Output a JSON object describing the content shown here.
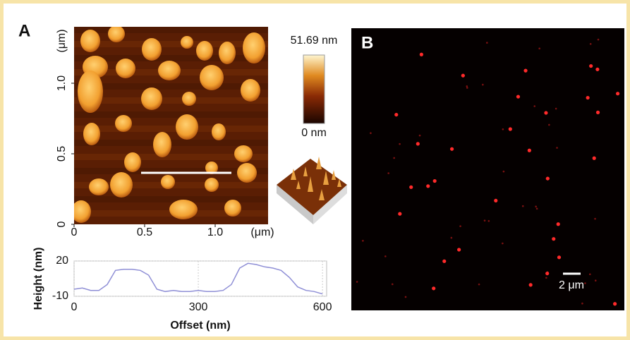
{
  "panel_a": {
    "label": "A",
    "colorbar": {
      "max": "51.69 nm",
      "min": "0 nm"
    }
  },
  "panel_b": {
    "label": "B",
    "scale_bar": "2 μm"
  },
  "chart_data": [
    {
      "type": "image",
      "xlabel": "(μm)",
      "ylabel": "(μm)",
      "xlim": [
        0,
        1.375
      ],
      "ylim": [
        0,
        1.4
      ],
      "xticks": [
        0,
        0.5,
        {
          "value": 1,
          "label": "1.0"
        }
      ],
      "yticks": [
        0,
        0.5,
        {
          "value": 1,
          "label": "1.0"
        }
      ]
    },
    {
      "type": "line",
      "xlabel": "Offset (nm)",
      "ylabel": "Height (nm)",
      "x": [
        0,
        20,
        40,
        60,
        80,
        100,
        120,
        140,
        160,
        180,
        200,
        220,
        240,
        260,
        280,
        300,
        320,
        340,
        360,
        380,
        400,
        420,
        440,
        460,
        480,
        500,
        520,
        540,
        560,
        580,
        600
      ],
      "values": [
        -4,
        -3,
        -5,
        -5,
        0,
        12,
        13,
        13,
        12,
        8,
        -4,
        -6,
        -5,
        -6,
        -6,
        -5,
        -6,
        -6,
        -5,
        0,
        14,
        18,
        17,
        15,
        14,
        12,
        6,
        -2,
        -5,
        -6,
        -8
      ],
      "color": "#8f8fd6",
      "xlim": [
        0,
        610
      ],
      "ylim": [
        -10,
        20
      ],
      "xticks": [
        0,
        300,
        600
      ],
      "yticks": [
        -10,
        20
      ],
      "grid": true
    }
  ]
}
